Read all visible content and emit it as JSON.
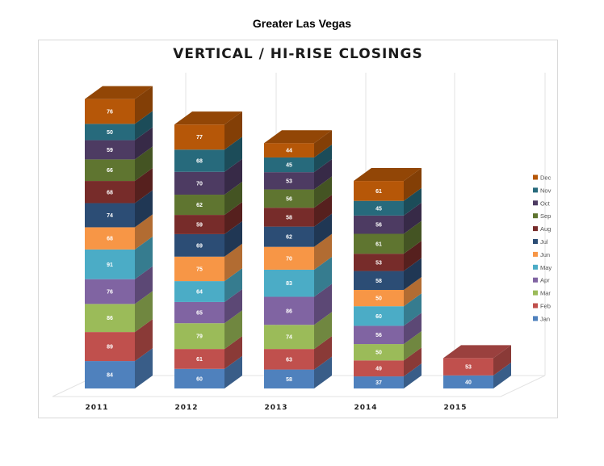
{
  "page_title": "Greater Las Vegas",
  "chart_data": {
    "type": "bar",
    "stacked": true,
    "three_d": true,
    "title": "VERTICAL / HI-RISE CLOSINGS",
    "categories": [
      "2011",
      "2012",
      "2013",
      "2014",
      "2015"
    ],
    "legend_position": "right",
    "grid": true,
    "series": [
      {
        "name": "Jan",
        "color": "#4f81bd",
        "values": [
          84,
          60,
          58,
          37,
          40
        ]
      },
      {
        "name": "Feb",
        "color": "#c0504d",
        "values": [
          89,
          61,
          63,
          49,
          53
        ]
      },
      {
        "name": "Mar",
        "color": "#9bbb59",
        "values": [
          86,
          79,
          74,
          50,
          null
        ]
      },
      {
        "name": "Apr",
        "color": "#8064a2",
        "values": [
          76,
          65,
          86,
          56,
          null
        ]
      },
      {
        "name": "May",
        "color": "#4bacc6",
        "values": [
          91,
          64,
          83,
          60,
          null
        ]
      },
      {
        "name": "Jun",
        "color": "#f79646",
        "values": [
          68,
          75,
          70,
          50,
          null
        ]
      },
      {
        "name": "Jul",
        "color": "#2c4d75",
        "values": [
          74,
          69,
          62,
          58,
          null
        ]
      },
      {
        "name": "Aug",
        "color": "#772c2a",
        "values": [
          68,
          59,
          58,
          53,
          null
        ]
      },
      {
        "name": "Sep",
        "color": "#5f7530",
        "values": [
          66,
          62,
          56,
          61,
          null
        ]
      },
      {
        "name": "Oct",
        "color": "#4d3b62",
        "values": [
          59,
          70,
          53,
          56,
          null
        ]
      },
      {
        "name": "Nov",
        "color": "#276a7c",
        "values": [
          50,
          68,
          45,
          45,
          null
        ]
      },
      {
        "name": "Dec",
        "color": "#b65708",
        "values": [
          76,
          77,
          44,
          61,
          null
        ]
      }
    ]
  }
}
